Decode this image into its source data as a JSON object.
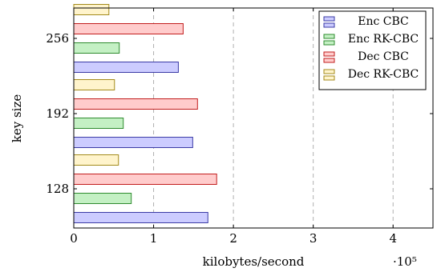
{
  "chart_data": {
    "type": "bar",
    "orientation": "horizontal",
    "categories": [
      "128",
      "192",
      "256"
    ],
    "series": [
      {
        "name": "Enc CBC",
        "values": [
          1.68,
          1.49,
          1.31
        ],
        "fill": "#ccccff",
        "stroke": "#3a3aa6"
      },
      {
        "name": "Enc RK-CBC",
        "values": [
          0.72,
          0.62,
          0.57
        ],
        "fill": "#c4f0c4",
        "stroke": "#2e8b2e"
      },
      {
        "name": "Dec CBC",
        "values": [
          1.79,
          1.55,
          1.37
        ],
        "fill": "#ffcccc",
        "stroke": "#c21e1e"
      },
      {
        "name": "Dec RK-CBC",
        "values": [
          0.56,
          0.51,
          0.44
        ],
        "fill": "#fff4cc",
        "stroke": "#a38a1a"
      }
    ],
    "xlabel": "kilobytes/second",
    "ylabel": "key size",
    "xlim": [
      0,
      4.5
    ],
    "xticks": [
      "0",
      "1",
      "2",
      "3",
      "4"
    ],
    "x_scale_note": "·10⁵",
    "grid": "vertical dashed",
    "legend_position": "top-right"
  }
}
